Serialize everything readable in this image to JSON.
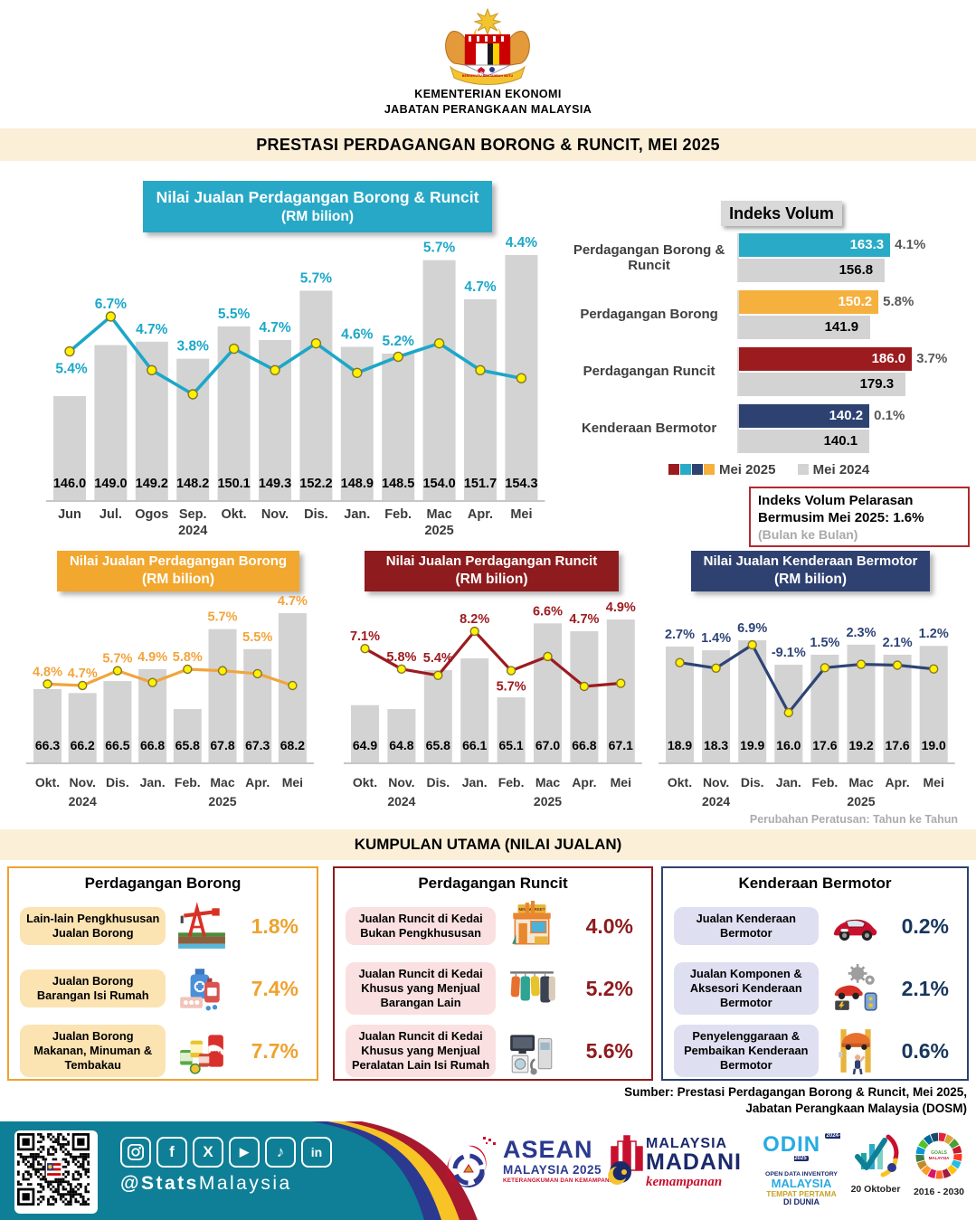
{
  "header": {
    "ministry": "KEMENTERIAN EKONOMI",
    "department": "JABATAN PERANGKAAN MALAYSIA"
  },
  "title_banner": "PRESTASI PERDAGANGAN BORONG & RUNCIT, MEI 2025",
  "chart_data": [
    {
      "id": "main",
      "type": "bar",
      "title": "Nilai Jualan Perdagangan Borong & Runcit",
      "subtitle": "(RM bilion)",
      "categories": [
        "Jun",
        "Jul.",
        "Ogos",
        "Sep.",
        "Okt.",
        "Nov.",
        "Dis.",
        "Jan.",
        "Feb.",
        "Mac",
        "Apr.",
        "Mei"
      ],
      "year_row": {
        "3": "2024",
        "9": "2025"
      },
      "series": [
        {
          "name": "Nilai jualan (RM bilion)",
          "type": "bar",
          "values": [
            146.0,
            149.0,
            149.2,
            148.2,
            150.1,
            149.3,
            152.2,
            148.9,
            148.5,
            154.0,
            151.7,
            154.3
          ]
        },
        {
          "name": "Perubahan peratusan tahun ke tahun (%)",
          "type": "line",
          "values": [
            5.4,
            6.7,
            4.7,
            3.8,
            5.5,
            4.7,
            5.7,
            4.6,
            5.2,
            5.7,
            4.7,
            4.4
          ]
        }
      ],
      "colors": {
        "bar": "#D3D3D3",
        "line": "#1CA7C9",
        "marker": "#FFF200",
        "header_bg": "#27A8C6"
      }
    },
    {
      "id": "borong",
      "type": "bar",
      "title": "Nilai Jualan Perdagangan Borong",
      "subtitle": "(RM bilion)",
      "categories": [
        "Okt.",
        "Nov.",
        "Dis.",
        "Jan.",
        "Feb.",
        "Mac",
        "Apr.",
        "Mei"
      ],
      "year_row": {
        "1": "2024",
        "5": "2025"
      },
      "series": [
        {
          "name": "Nilai jualan (RM bilion)",
          "type": "bar",
          "values": [
            66.3,
            66.2,
            66.5,
            66.8,
            65.8,
            67.8,
            67.3,
            68.2
          ]
        },
        {
          "name": "Perubahan peratusan tahun ke tahun (%)",
          "type": "line",
          "values": [
            4.8,
            4.7,
            5.7,
            4.9,
            5.8,
            5.7,
            5.5,
            4.7
          ]
        }
      ],
      "colors": {
        "bar": "#D3D3D3",
        "line": "#F2A43C",
        "marker": "#FFF200",
        "header_bg": "#F2A72E"
      }
    },
    {
      "id": "runcit",
      "type": "bar",
      "title": "Nilai Jualan Perdagangan Runcit",
      "subtitle": "(RM bilion)",
      "categories": [
        "Okt.",
        "Nov.",
        "Dis.",
        "Jan.",
        "Feb.",
        "Mac",
        "Apr.",
        "Mei"
      ],
      "year_row": {
        "1": "2024",
        "5": "2025"
      },
      "series": [
        {
          "name": "Nilai jualan (RM bilion)",
          "type": "bar",
          "values": [
            64.9,
            64.8,
            65.8,
            66.1,
            65.1,
            67.0,
            66.8,
            67.1
          ]
        },
        {
          "name": "Perubahan peratusan tahun ke tahun (%)",
          "type": "line",
          "values": [
            7.1,
            5.8,
            5.4,
            8.2,
            5.7,
            6.6,
            4.7,
            4.9
          ]
        }
      ],
      "colors": {
        "bar": "#D3D3D3",
        "line": "#9C1B20",
        "marker": "#FFF200",
        "header_bg": "#8E1B1D"
      }
    },
    {
      "id": "kenderaan",
      "type": "bar",
      "title": "Nilai Jualan Kenderaan Bermotor",
      "subtitle": "(RM bilion)",
      "categories": [
        "Okt.",
        "Nov.",
        "Dis.",
        "Jan.",
        "Feb.",
        "Mac",
        "Apr.",
        "Mei"
      ],
      "year_row": {
        "1": "2024",
        "5": "2025"
      },
      "series": [
        {
          "name": "Nilai jualan (RM bilion)",
          "type": "bar",
          "values": [
            18.9,
            18.3,
            19.9,
            16.0,
            17.6,
            19.2,
            17.6,
            19.0
          ]
        },
        {
          "name": "Perubahan peratusan tahun ke tahun (%)",
          "type": "line",
          "values": [
            2.7,
            1.4,
            6.9,
            -9.1,
            1.5,
            2.3,
            2.1,
            1.2
          ]
        }
      ],
      "colors": {
        "bar": "#D3D3D3",
        "line": "#2E4476",
        "marker": "#FFF200",
        "header_bg": "#2E4170"
      }
    },
    {
      "id": "indeks_volum",
      "type": "hbar",
      "title": "Indeks Volum",
      "rows": [
        {
          "label": "Perdagangan Borong & Runcit",
          "mei_2025": 163.3,
          "mei_2024": 156.8,
          "change_pct": 4.1,
          "color": "#29ABC7"
        },
        {
          "label": "Perdagangan Borong",
          "mei_2025": 150.2,
          "mei_2024": 141.9,
          "change_pct": 5.8,
          "color": "#F5B03E"
        },
        {
          "label": "Perdagangan Runcit",
          "mei_2025": 186.0,
          "mei_2024": 179.3,
          "change_pct": 3.7,
          "color": "#9B1B1F"
        },
        {
          "label": "Kenderaan Bermotor",
          "mei_2025": 140.2,
          "mei_2024": 140.1,
          "change_pct": 0.1,
          "color": "#2E4272"
        }
      ],
      "legend": [
        {
          "label": "Mei 2025",
          "colors": [
            "#9B1B1F",
            "#29ABC7",
            "#2E4272",
            "#F5B03E"
          ]
        },
        {
          "label": "Mei 2024",
          "colors": [
            "#D3D3D3"
          ]
        }
      ]
    }
  ],
  "seasonal_note": {
    "line1": "Indeks Volum Pelarasan",
    "line2": "Bermusim Mei 2025: 1.6%",
    "line3": "(Bulan ke Bulan)"
  },
  "perubahan_note": "Perubahan Peratusan: Tahun ke Tahun",
  "kumpulan": {
    "banner": "KUMPULAN UTAMA (NILAI JUALAN)",
    "boxes": [
      {
        "title": "Perdagangan Borong",
        "accent": "#EFA22E",
        "chip_bg": "#FBE3B2",
        "value_color": "#EFA22E",
        "items": [
          {
            "label": "Lain-lain Pengkhususan Jualan Borong",
            "icon": "oil-pump-icon",
            "value": "1.8%"
          },
          {
            "label": "Jualan Borong Barangan Isi Rumah",
            "icon": "household-goods-icon",
            "value": "7.4%"
          },
          {
            "label": "Jualan Borong Makanan, Minuman & Tembakau",
            "icon": "food-beverage-icon",
            "value": "7.7%"
          }
        ]
      },
      {
        "title": "Perdagangan Runcit",
        "accent": "#8E1B1D",
        "chip_bg": "#FAE0E0",
        "value_color": "#8E1B1D",
        "items": [
          {
            "label": "Jualan Runcit di Kedai Bukan Pengkhususan",
            "icon": "mini-market-icon",
            "value": "4.0%"
          },
          {
            "label": "Jualan Runcit di Kedai Khusus yang Menjual Barangan Lain",
            "icon": "clothing-icon",
            "value": "5.2%"
          },
          {
            "label": "Jualan Runcit di Kedai Khusus yang Menjual Peralatan Lain Isi Rumah",
            "icon": "appliances-icon",
            "value": "5.6%"
          }
        ]
      },
      {
        "title": "Kenderaan Bermotor",
        "accent": "#2E4170",
        "chip_bg": "#DEDFF1",
        "value_color": "#17365D",
        "items": [
          {
            "label": "Jualan Kenderaan Bermotor",
            "icon": "car-icon",
            "value": "0.2%"
          },
          {
            "label": "Jualan Komponen & Aksesori Kenderaan Bermotor",
            "icon": "car-parts-icon",
            "value": "2.1%"
          },
          {
            "label": "Penyelenggaraan & Pembaikan Kenderaan Bermotor",
            "icon": "car-service-icon",
            "value": "0.6%"
          }
        ]
      }
    ]
  },
  "source": {
    "line1": "Sumber: Prestasi Perdagangan Borong & Runcit, Mei 2025,",
    "line2": "Jabatan Perangkaan Malaysia (DOSM)"
  },
  "footer": {
    "handle": {
      "bold": "@Stats",
      "regular": "Malaysia"
    },
    "social": [
      "instagram",
      "facebook",
      "x",
      "youtube",
      "tiktok",
      "linkedin"
    ],
    "logos": {
      "asean": {
        "line1": "ASEAN",
        "line2": "MALAYSIA 2025",
        "line3": "KETERANGKUMAN DAN KEMAMPANAN"
      },
      "madani": {
        "line1": "MALAYSIA",
        "line2": "MADANI",
        "line3": "kemampanan"
      },
      "odin": {
        "line1": "ODIN",
        "badge": "2024-2025",
        "line2": "OPEN DATA INVENTORY",
        "line3": "MALAYSIA",
        "line4": "TEMPAT PERTAMA",
        "line5": "DI DUNIA"
      },
      "statistik": {
        "caption": "20 Oktober"
      },
      "sdg": {
        "caption": "2016 - 2030"
      }
    }
  }
}
